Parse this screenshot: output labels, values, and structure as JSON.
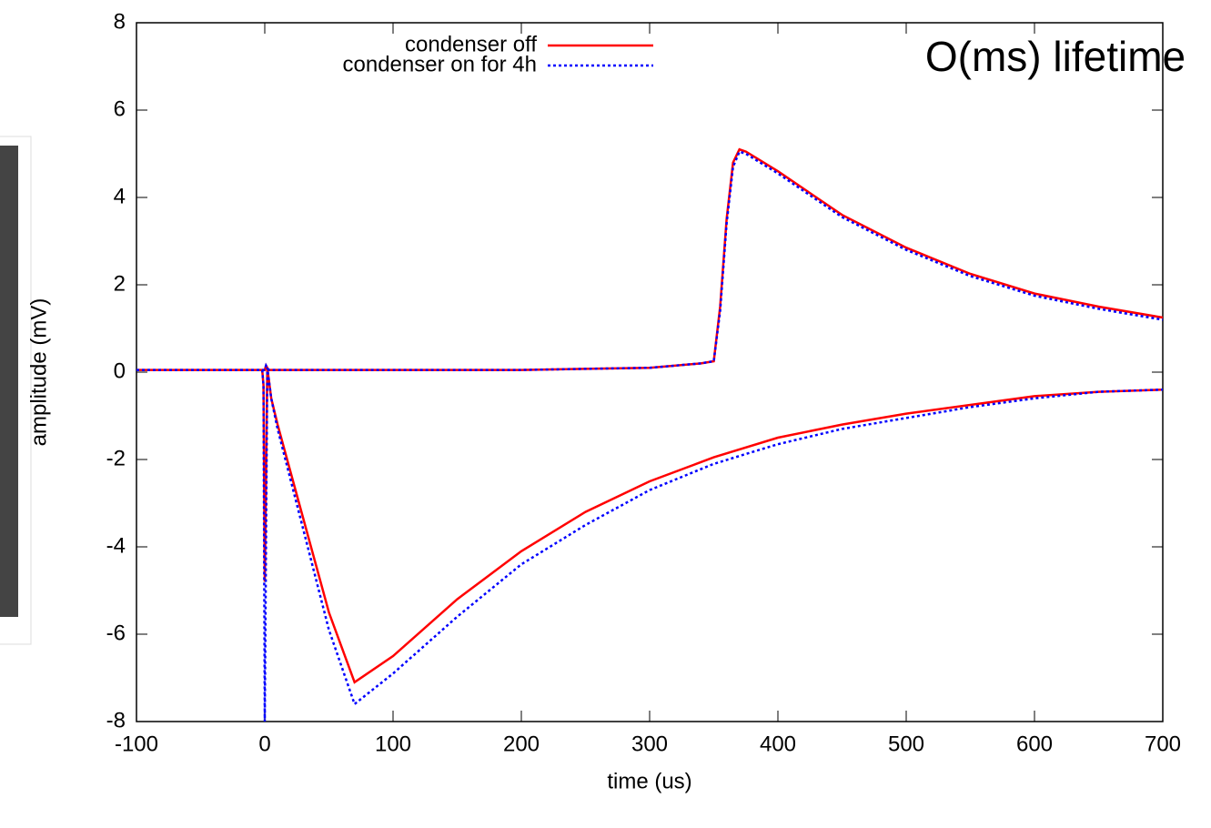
{
  "chart_data": {
    "type": "line",
    "xlabel": "time (us)",
    "ylabel": "amplitude (mV)",
    "annotation": "O(ms) lifetime",
    "xlim": [
      -100,
      700
    ],
    "xticks": [
      -100,
      0,
      100,
      200,
      300,
      400,
      500,
      600,
      700
    ],
    "ylim": [
      -8,
      8
    ],
    "yticks": [
      -8,
      -6,
      -4,
      -2,
      0,
      2,
      4,
      6,
      8
    ],
    "grid": false,
    "legend": "top",
    "series": [
      {
        "name": "condenser off",
        "color": "#ff0000",
        "dash": "solid",
        "x": [
          -100,
          -50,
          0,
          1,
          3,
          50,
          100,
          200,
          300,
          340,
          350,
          355,
          360,
          365,
          370,
          375,
          400,
          450,
          500,
          550,
          600,
          650,
          700,
          null,
          -100,
          -2,
          -1,
          0,
          2,
          5,
          10,
          50,
          70,
          100,
          150,
          200,
          250,
          300,
          350,
          400,
          450,
          500,
          550,
          600,
          650,
          700
        ],
        "values": [
          0.05,
          0.05,
          0.05,
          0.15,
          0.05,
          0.05,
          0.05,
          0.05,
          0.1,
          0.2,
          0.25,
          1.5,
          3.5,
          4.8,
          5.1,
          5.05,
          4.6,
          3.6,
          2.85,
          2.25,
          1.8,
          1.5,
          1.25,
          null,
          0.05,
          0.05,
          -0.3,
          -4.8,
          0.1,
          -0.6,
          -1.2,
          -5.5,
          -7.1,
          -6.5,
          -5.2,
          -4.1,
          -3.2,
          -2.5,
          -1.95,
          -1.5,
          -1.2,
          -0.95,
          -0.75,
          -0.55,
          -0.45,
          -0.4
        ]
      },
      {
        "name": "condenser on for 4h",
        "color": "#0000ff",
        "dash": "dotted",
        "x": [
          -100,
          -50,
          0,
          1,
          3,
          50,
          100,
          200,
          300,
          340,
          350,
          355,
          360,
          365,
          370,
          375,
          400,
          450,
          500,
          550,
          600,
          650,
          700,
          null,
          -100,
          -2,
          -1,
          0,
          2,
          5,
          10,
          50,
          70,
          100,
          150,
          200,
          250,
          300,
          350,
          400,
          450,
          500,
          550,
          600,
          650,
          700
        ],
        "values": [
          0.05,
          0.05,
          0.05,
          0.15,
          0.05,
          0.05,
          0.05,
          0.05,
          0.1,
          0.2,
          0.25,
          1.4,
          3.4,
          4.7,
          5.05,
          5.0,
          4.55,
          3.55,
          2.8,
          2.2,
          1.75,
          1.45,
          1.2,
          null,
          0.05,
          0.05,
          -0.3,
          -8,
          0.1,
          -0.6,
          -1.3,
          -5.9,
          -7.6,
          -6.9,
          -5.6,
          -4.4,
          -3.5,
          -2.7,
          -2.1,
          -1.65,
          -1.3,
          -1.05,
          -0.8,
          -0.6,
          -0.45,
          -0.4
        ]
      }
    ]
  }
}
